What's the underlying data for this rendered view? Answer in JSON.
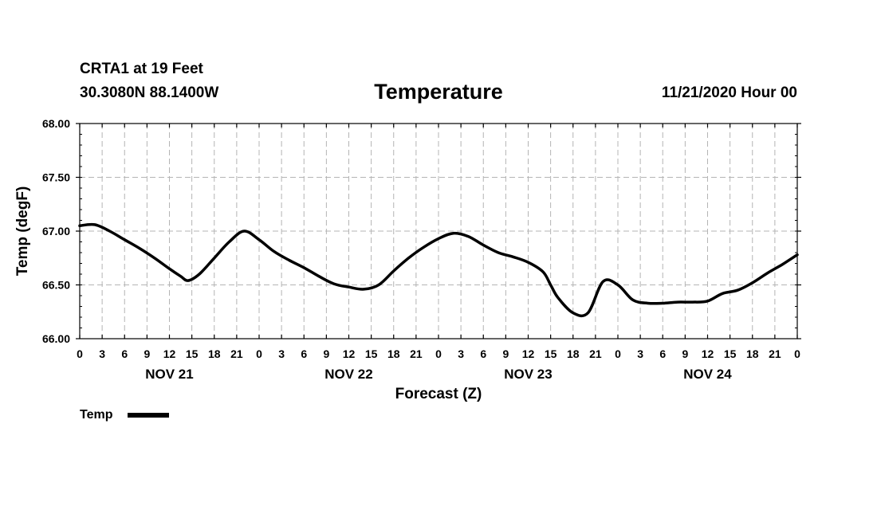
{
  "header": {
    "station": "CRTA1 at 19 Feet",
    "coords": "30.3080N 88.1400W",
    "run": "11/21/2020 Hour 00"
  },
  "colors": {
    "line": "#000000",
    "grid": "#b4b4b4"
  },
  "chart_data": {
    "type": "line",
    "title": "Temperature",
    "xlabel": "Forecast (Z)",
    "ylabel": "Temp (degF)",
    "ylim": [
      66.0,
      68.0
    ],
    "yticks": [
      "66.00",
      "66.50",
      "67.00",
      "67.50",
      "68.00"
    ],
    "xlim": [
      0,
      96
    ],
    "x_tick_labels": [
      "0",
      "3",
      "6",
      "9",
      "12",
      "15",
      "18",
      "21",
      "0",
      "3",
      "6",
      "9",
      "12",
      "15",
      "18",
      "21",
      "0",
      "3",
      "6",
      "9",
      "12",
      "15",
      "18",
      "21",
      "0",
      "3",
      "6",
      "9",
      "12",
      "15",
      "18",
      "21",
      "0"
    ],
    "day_labels": [
      "NOV 21",
      "NOV 22",
      "NOV 23",
      "NOV 24"
    ],
    "legend": {
      "label": "Temp",
      "position": "bottom-left"
    },
    "grid": true,
    "series": [
      {
        "name": "Temp",
        "x": [
          0,
          2,
          4,
          6,
          8,
          10,
          12,
          13.5,
          14.5,
          16,
          18,
          20,
          22,
          24,
          26,
          28,
          30,
          32,
          34,
          36,
          38,
          40,
          42,
          44,
          46,
          48,
          50,
          52,
          54,
          56,
          58,
          60,
          62,
          63,
          64,
          66,
          68,
          70,
          72,
          74,
          76,
          78,
          80,
          82,
          84,
          86,
          88,
          90,
          92,
          94,
          96
        ],
        "values": [
          67.05,
          67.06,
          67.0,
          66.92,
          66.84,
          66.75,
          66.65,
          66.58,
          66.54,
          66.6,
          66.75,
          66.9,
          67.0,
          66.92,
          66.81,
          66.73,
          66.66,
          66.58,
          66.51,
          66.48,
          66.46,
          66.5,
          66.63,
          66.75,
          66.85,
          66.93,
          66.98,
          66.95,
          66.87,
          66.8,
          66.76,
          66.71,
          66.62,
          66.5,
          66.38,
          66.24,
          66.24,
          66.53,
          66.5,
          66.36,
          66.33,
          66.33,
          66.34,
          66.34,
          66.35,
          66.42,
          66.45,
          66.52,
          66.61,
          66.69,
          66.78
        ]
      }
    ]
  }
}
